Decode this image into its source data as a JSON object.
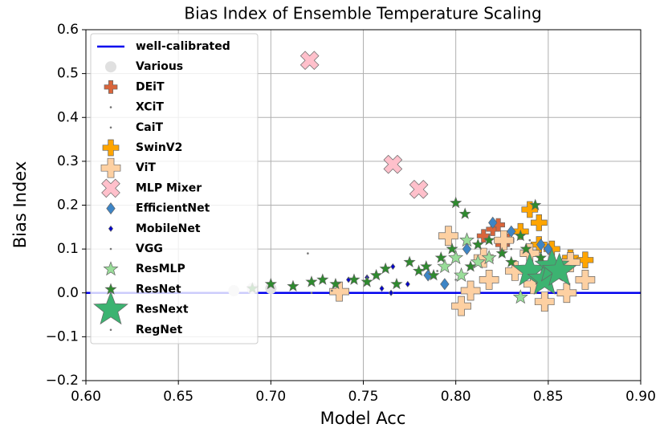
{
  "chart_data": {
    "type": "scatter",
    "title": "Bias Index of Ensemble Temperature Scaling",
    "x_label": "Model Acc",
    "y_label": "Bias Index",
    "xlim": [
      0.6,
      0.9
    ],
    "ylim": [
      -0.2,
      0.6
    ],
    "xticks": [
      {
        "value": 0.6,
        "label": "0.60"
      },
      {
        "value": 0.65,
        "label": "0.65"
      },
      {
        "value": 0.7,
        "label": "0.70"
      },
      {
        "value": 0.75,
        "label": "0.75"
      },
      {
        "value": 0.8,
        "label": "0.80"
      },
      {
        "value": 0.85,
        "label": "0.85"
      },
      {
        "value": 0.9,
        "label": "0.90"
      }
    ],
    "yticks": [
      {
        "value": -0.2,
        "label": "−0.2"
      },
      {
        "value": -0.1,
        "label": "−0.1"
      },
      {
        "value": 0,
        "label": "0.0"
      },
      0.1,
      0.2,
      0.3,
      0.4,
      0.5,
      0.6
    ],
    "grid": true,
    "legend": "upper left",
    "reference_line": {
      "name": "well-calibrated",
      "value": 0,
      "color": "#0000ee"
    },
    "series": [
      {
        "name": "Various",
        "marker": "circle",
        "size": 7,
        "color": "#e0e0e0",
        "x": [
          0.68,
          0.69,
          0.7
        ],
        "values": [
          0.005,
          0.01,
          0.01
        ]
      },
      {
        "name": "DEiT",
        "marker": "plus",
        "size": 8,
        "color": "#d9653b",
        "x": [
          0.815,
          0.82,
          0.823,
          0.828,
          0.825
        ],
        "values": [
          0.13,
          0.145,
          0.155,
          0.12,
          0.11
        ]
      },
      {
        "name": "XCiT",
        "marker": "dot",
        "size": 1.3,
        "color": "#777777",
        "x": [
          0.83,
          0.84
        ],
        "values": [
          0.1,
          0.12
        ]
      },
      {
        "name": "CaiT",
        "marker": "dot",
        "size": 1.3,
        "color": "#777777",
        "x": [
          0.845,
          0.85
        ],
        "values": [
          0.11,
          0.09
        ]
      },
      {
        "name": "SwinV2",
        "marker": "plus",
        "size": 10,
        "color": "#ffa500",
        "x": [
          0.84,
          0.845,
          0.852,
          0.862,
          0.87,
          0.845,
          0.835
        ],
        "values": [
          0.19,
          0.16,
          0.1,
          0.08,
          0.075,
          0.11,
          0.14
        ]
      },
      {
        "name": "ViT",
        "marker": "plus",
        "size": 12,
        "color": "#fdd0a2",
        "x": [
          0.796,
          0.737,
          0.803,
          0.808,
          0.815,
          0.826,
          0.84,
          0.842,
          0.848,
          0.86,
          0.862,
          0.87,
          0.818,
          0.832
        ],
        "values": [
          0.13,
          0.003,
          -0.03,
          0.005,
          0.08,
          0.12,
          0.09,
          0.02,
          -0.02,
          0.0,
          0.07,
          0.03,
          0.03,
          0.05
        ]
      },
      {
        "name": "MLP Mixer",
        "marker": "x",
        "size": 12,
        "color": "#ffc0cb",
        "x": [
          0.721,
          0.766,
          0.78
        ],
        "values": [
          0.53,
          0.293,
          0.236
        ]
      },
      {
        "name": "EfficientNet",
        "marker": "diamond",
        "size": 7,
        "color": "#3d85c6",
        "x": [
          0.794,
          0.806,
          0.82,
          0.83,
          0.846,
          0.85,
          0.785
        ],
        "values": [
          0.02,
          0.1,
          0.16,
          0.14,
          0.11,
          0.1,
          0.04
        ]
      },
      {
        "name": "MobileNet",
        "marker": "diamond",
        "size": 3.5,
        "color": "#0000cd",
        "x": [
          0.742,
          0.752,
          0.766,
          0.765,
          0.774,
          0.76
        ],
        "values": [
          0.03,
          0.035,
          0.06,
          0.0,
          0.02,
          0.01
        ]
      },
      {
        "name": "VGG",
        "marker": "dot",
        "size": 1.3,
        "color": "#777777",
        "x": [
          0.72,
          0.722,
          0.733
        ],
        "values": [
          0.09,
          0.0,
          0.005
        ]
      },
      {
        "name": "ResMLP",
        "marker": "star",
        "size": 9,
        "color": "#99dd99",
        "x": [
          0.794,
          0.8,
          0.806,
          0.812,
          0.818,
          0.835,
          0.803
        ],
        "values": [
          0.06,
          0.08,
          0.12,
          0.07,
          0.08,
          -0.01,
          0.04
        ]
      },
      {
        "name": "ResNet",
        "marker": "star",
        "size": 7,
        "color": "#2e8b2e",
        "x": [
          0.69,
          0.7,
          0.712,
          0.722,
          0.728,
          0.735,
          0.745,
          0.752,
          0.757,
          0.762,
          0.768,
          0.775,
          0.78,
          0.784,
          0.788,
          0.792,
          0.798,
          0.8,
          0.805,
          0.808,
          0.812,
          0.818,
          0.825,
          0.83,
          0.835,
          0.838,
          0.843,
          0.846,
          0.85,
          0.855,
          0.845
        ],
        "values": [
          0.01,
          0.02,
          0.015,
          0.025,
          0.03,
          0.02,
          0.03,
          0.025,
          0.04,
          0.055,
          0.02,
          0.07,
          0.05,
          0.06,
          0.04,
          0.08,
          0.1,
          0.205,
          0.18,
          0.06,
          0.11,
          0.12,
          0.09,
          0.07,
          0.13,
          0.1,
          0.2,
          0.08,
          0.06,
          0.04,
          0.03
        ]
      },
      {
        "name": "ResNext",
        "marker": "star",
        "size": 22,
        "color": "#3cb371",
        "x": [
          0.84,
          0.848,
          0.852,
          0.856
        ],
        "values": [
          0.05,
          0.03,
          0.06,
          0.05
        ]
      },
      {
        "name": "RegNet",
        "marker": "dot",
        "size": 1.3,
        "color": "#777777",
        "x": [
          0.79,
          0.8,
          0.81
        ],
        "values": [
          0.05,
          0.03,
          0.06
        ]
      }
    ]
  }
}
